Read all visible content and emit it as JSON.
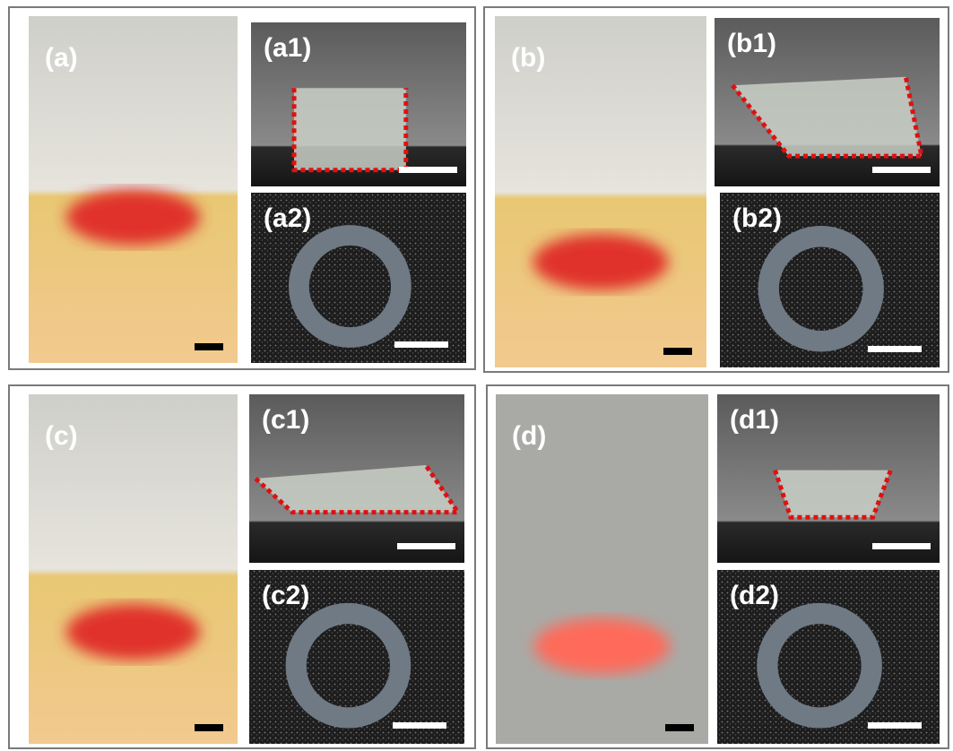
{
  "panels": [
    {
      "label": "(a)",
      "top_label": "(a1)",
      "bottom_label": "(a2)"
    },
    {
      "label": "(b)",
      "top_label": "(b1)",
      "bottom_label": "(b2)"
    },
    {
      "label": "(c)",
      "top_label": "(c1)",
      "bottom_label": "(c2)"
    },
    {
      "label": "(d)",
      "top_label": "(d1)",
      "bottom_label": "(d2)"
    }
  ]
}
